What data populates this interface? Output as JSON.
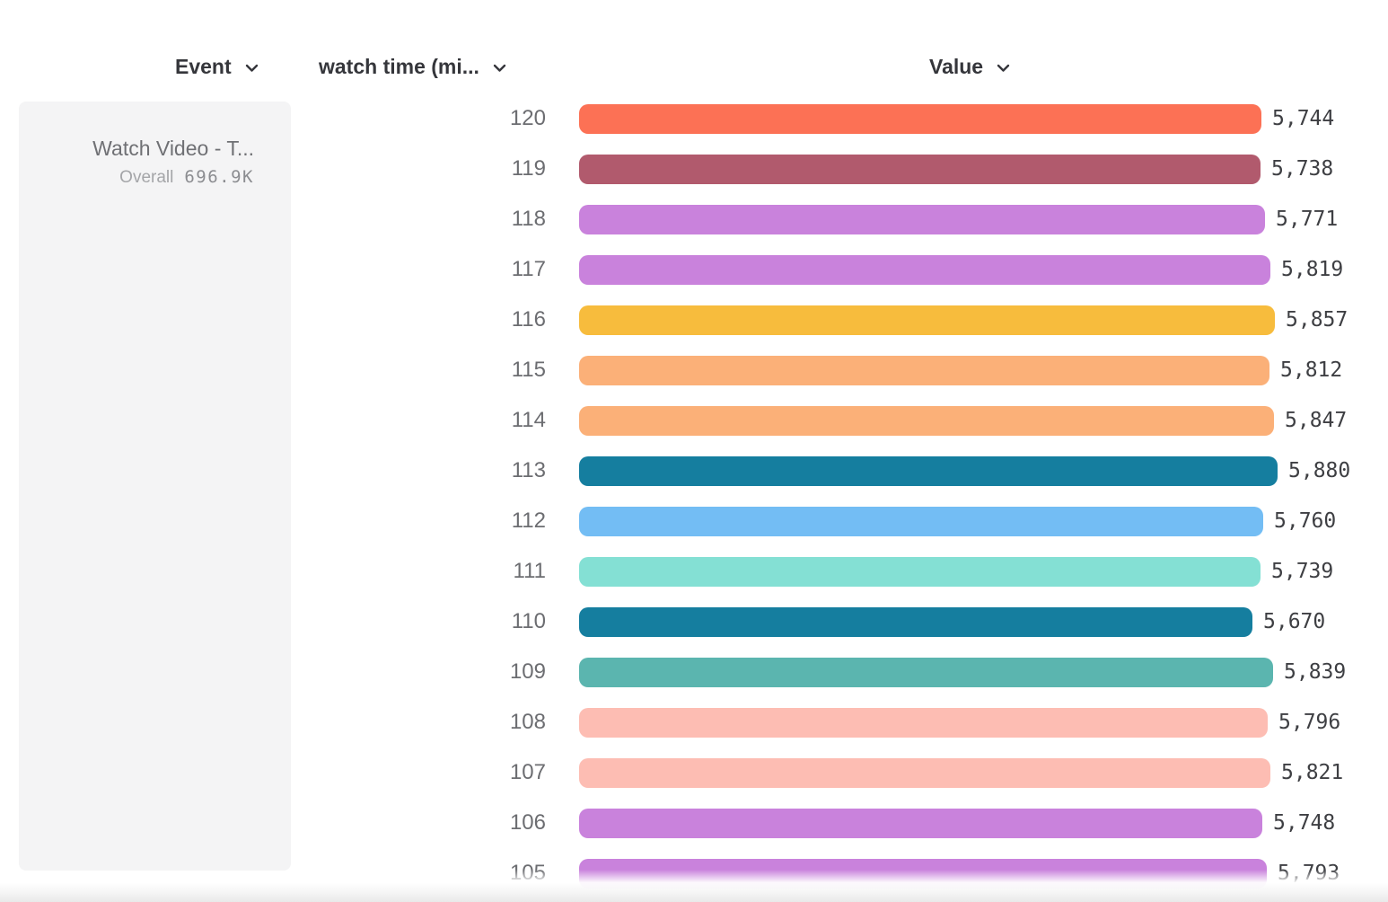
{
  "header": {
    "event_column_label": "Event",
    "watch_time_column_label": "watch time (mi...",
    "value_column_label": "Value"
  },
  "event_card": {
    "title": "Watch Video - T...",
    "overall_label": "Overall",
    "overall_value": "696.9K"
  },
  "chart_data": {
    "type": "bar",
    "orientation": "horizontal",
    "series_name": "Watch Video - T...",
    "overall_total": "696.9K",
    "categories": [
      "120",
      "119",
      "118",
      "117",
      "116",
      "115",
      "114",
      "113",
      "112",
      "111",
      "110",
      "109",
      "108",
      "107",
      "106",
      "105"
    ],
    "values": [
      5744,
      5738,
      5771,
      5819,
      5857,
      5812,
      5847,
      5880,
      5760,
      5739,
      5670,
      5839,
      5796,
      5821,
      5748,
      5793
    ],
    "value_labels": [
      "5,744",
      "5,738",
      "5,771",
      "5,819",
      "5,857",
      "5,812",
      "5,847",
      "5,880",
      "5,760",
      "5,739",
      "5,670",
      "5,839",
      "5,796",
      "5,821",
      "5,748",
      "5,793"
    ],
    "bar_colors": [
      "#FC7155",
      "#B15A6D",
      "#C982DC",
      "#C982DC",
      "#F7BC3D",
      "#FBB078",
      "#FBB078",
      "#157E9F",
      "#73BDF4",
      "#84E0D4",
      "#157E9F",
      "#5BB5AF",
      "#FDBDB3",
      "#FDBDB3",
      "#C982DC",
      "#C982DC"
    ],
    "xlim": [
      0,
      5880
    ],
    "grid": false,
    "legend_position": "left"
  }
}
